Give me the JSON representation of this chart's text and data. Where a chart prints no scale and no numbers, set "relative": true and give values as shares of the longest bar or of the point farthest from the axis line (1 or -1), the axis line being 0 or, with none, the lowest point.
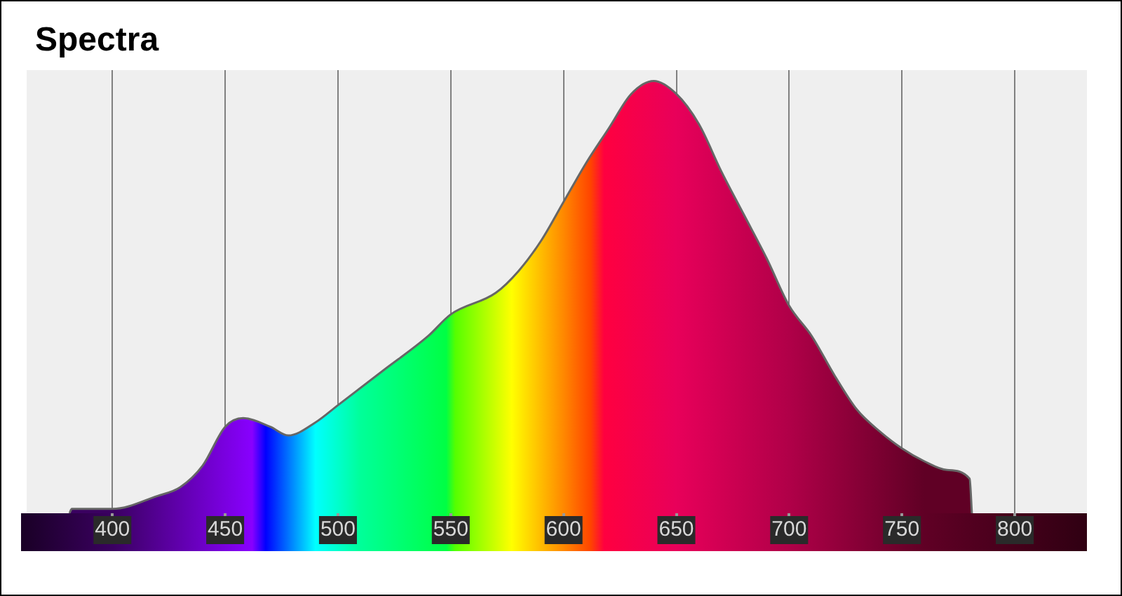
{
  "chart_data": {
    "type": "area",
    "title": "Spectra",
    "relative": true,
    "color": "#666666",
    "grid": "x",
    "xlim": [
      362,
      832
    ],
    "xticks": [
      400,
      450,
      500,
      550,
      600,
      650,
      700,
      750,
      800
    ],
    "x": [
      381,
      382,
      400,
      420,
      430,
      440,
      450,
      458,
      470,
      478,
      490,
      500,
      520,
      540,
      550,
      570,
      580,
      590,
      600,
      610,
      620,
      630,
      640,
      650,
      660,
      670,
      680,
      690,
      700,
      710,
      720,
      730,
      740,
      750,
      760,
      770,
      780,
      781
    ],
    "values": [
      0,
      0.01,
      0.01,
      0.04,
      0.06,
      0.11,
      0.2,
      0.22,
      0.2,
      0.18,
      0.21,
      0.25,
      0.33,
      0.41,
      0.46,
      0.51,
      0.56,
      0.63,
      0.72,
      0.81,
      0.89,
      0.97,
      1,
      0.97,
      0.9,
      0.79,
      0.69,
      0.59,
      0.48,
      0.41,
      0.32,
      0.24,
      0.19,
      0.15,
      0.12,
      0.1,
      0.08,
      0
    ]
  }
}
